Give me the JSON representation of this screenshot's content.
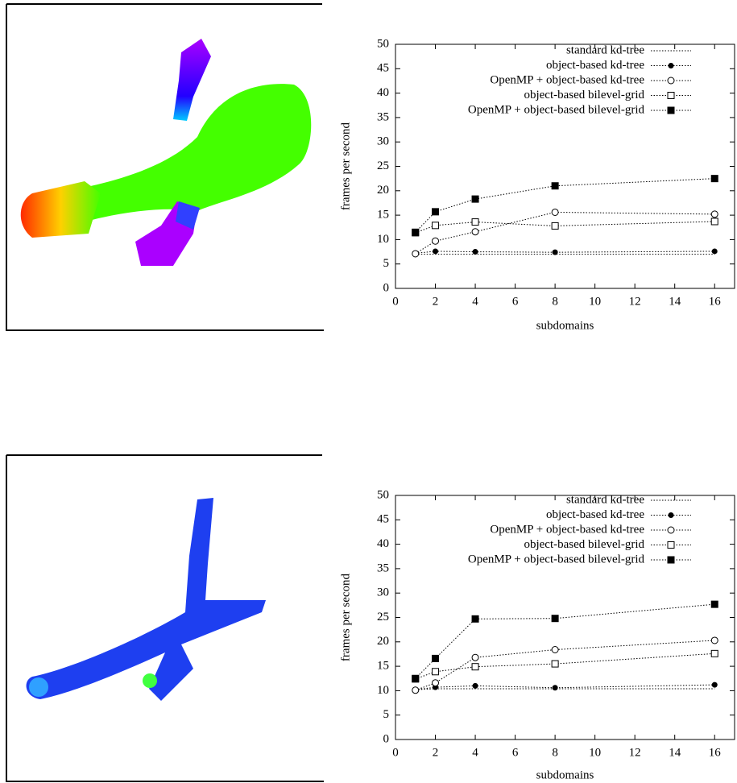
{
  "chart_data": [
    {
      "type": "line",
      "xlabel": "subdomains",
      "ylabel": "frames per second",
      "x": [
        1,
        2,
        4,
        8,
        16
      ],
      "xlim": [
        0,
        17
      ],
      "ylim": [
        0,
        50
      ],
      "xticks": [
        0,
        2,
        4,
        6,
        8,
        10,
        12,
        14,
        16
      ],
      "yticks": [
        0,
        5,
        10,
        15,
        20,
        25,
        30,
        35,
        40,
        45,
        50
      ],
      "legend": "top-right",
      "series": [
        {
          "name": "standard kd-tree",
          "color": "#000000",
          "marker": "none",
          "values": [
            7.0,
            7.0,
            7.0,
            7.0,
            7.0
          ]
        },
        {
          "name": "object-based kd-tree",
          "color": "#000000",
          "marker": "filled-circle",
          "values": [
            7.2,
            7.6,
            7.5,
            7.4,
            7.6
          ]
        },
        {
          "name": "OpenMP + object-based kd-tree",
          "color": "#000000",
          "marker": "open-circle",
          "values": [
            7.1,
            9.7,
            11.6,
            15.6,
            15.2
          ]
        },
        {
          "name": "object-based bilevel-grid",
          "color": "#000000",
          "marker": "open-square",
          "values": [
            11.4,
            12.9,
            13.6,
            12.8,
            13.7
          ]
        },
        {
          "name": "OpenMP + object-based bilevel-grid",
          "color": "#000000",
          "marker": "filled-square",
          "values": [
            11.5,
            15.7,
            18.3,
            21.0,
            22.5
          ]
        }
      ]
    },
    {
      "type": "line",
      "xlabel": "subdomains",
      "ylabel": "frames per second",
      "x": [
        1,
        2,
        4,
        8,
        16
      ],
      "xlim": [
        0,
        17
      ],
      "ylim": [
        0,
        50
      ],
      "xticks": [
        0,
        2,
        4,
        6,
        8,
        10,
        12,
        14,
        16
      ],
      "yticks": [
        0,
        5,
        10,
        15,
        20,
        25,
        30,
        35,
        40,
        45,
        50
      ],
      "legend": "top-right",
      "series": [
        {
          "name": "standard kd-tree",
          "color": "#000000",
          "marker": "none",
          "values": [
            10.2,
            10.4,
            10.4,
            10.4,
            10.4
          ]
        },
        {
          "name": "object-based kd-tree",
          "color": "#000000",
          "marker": "filled-circle",
          "values": [
            10.2,
            10.7,
            11.0,
            10.6,
            11.2
          ]
        },
        {
          "name": "OpenMP + object-based kd-tree",
          "color": "#000000",
          "marker": "open-circle",
          "values": [
            10.1,
            11.6,
            16.8,
            18.4,
            20.3
          ]
        },
        {
          "name": "object-based bilevel-grid",
          "color": "#000000",
          "marker": "open-square",
          "values": [
            12.4,
            13.9,
            14.9,
            15.5,
            17.6
          ]
        },
        {
          "name": "OpenMP + object-based bilevel-grid",
          "color": "#000000",
          "marker": "filled-square",
          "values": [
            12.5,
            16.6,
            24.7,
            24.8,
            27.7
          ]
        }
      ]
    }
  ]
}
